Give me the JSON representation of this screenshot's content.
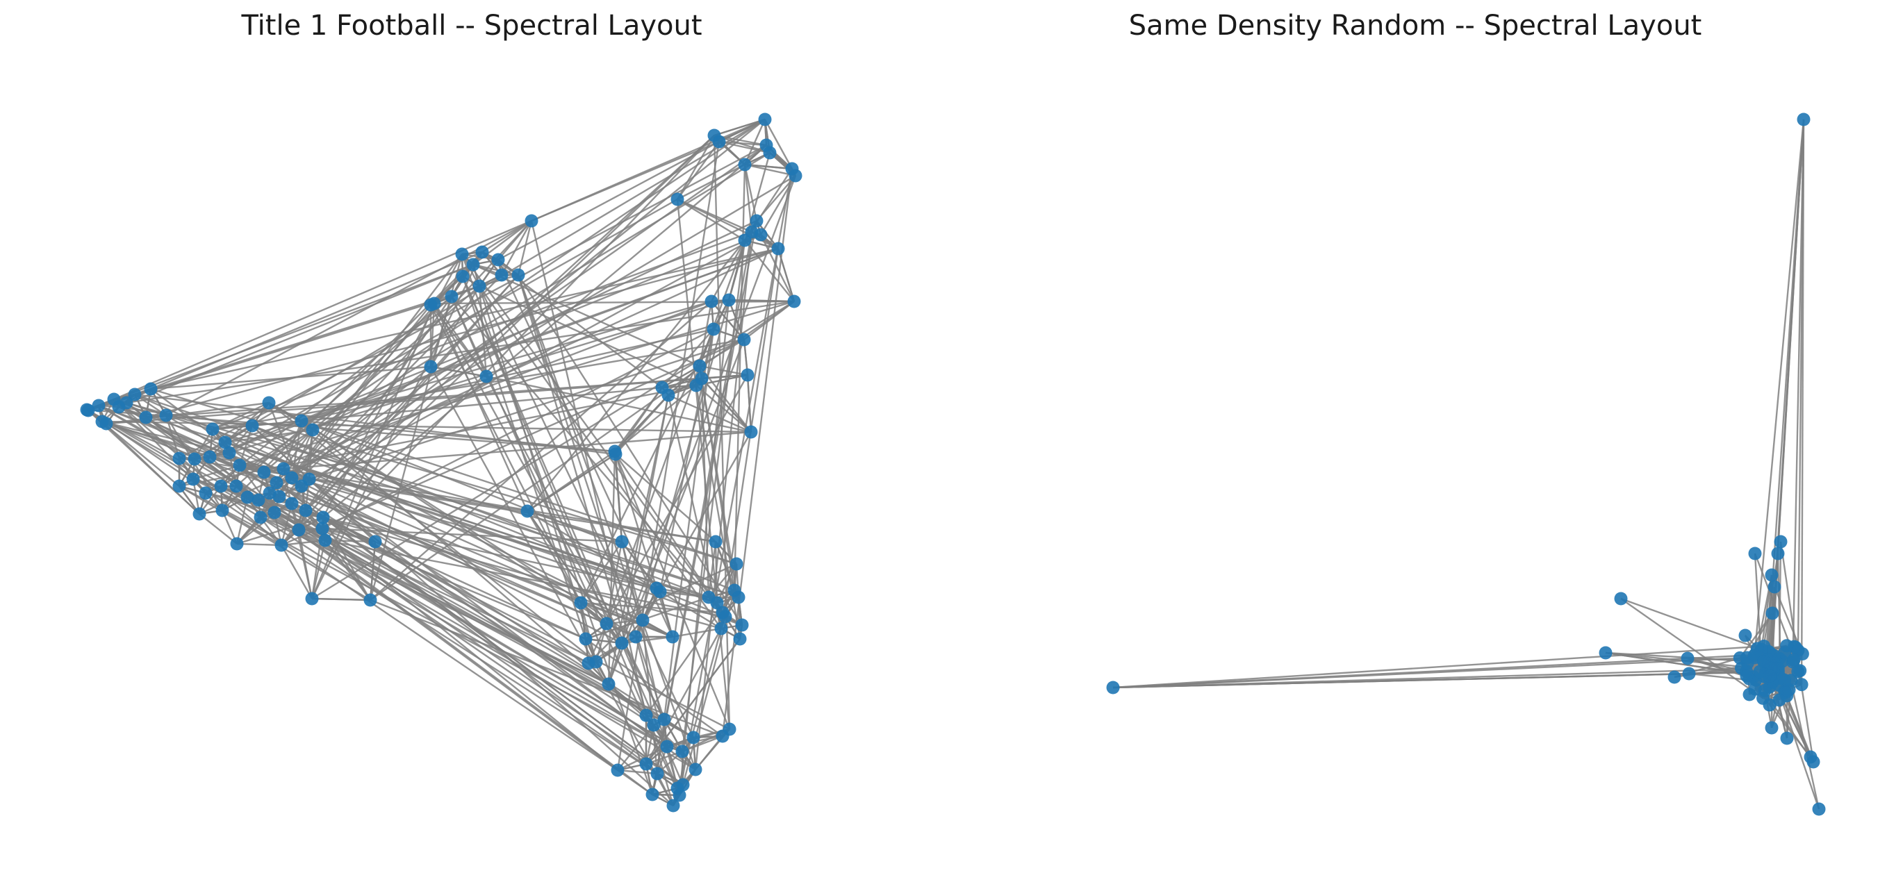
{
  "panels": [
    {
      "title": "Title 1 Football -- Spectral Layout",
      "node_color": "#1f77b4",
      "edge_color": "#808080"
    },
    {
      "title": "Same Density Random -- Spectral Layout",
      "node_color": "#1f77b4",
      "edge_color": "#808080"
    }
  ]
}
